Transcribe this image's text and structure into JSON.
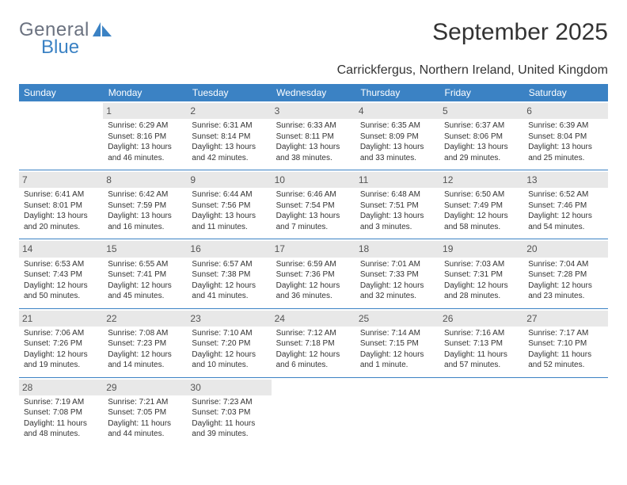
{
  "logo": {
    "text_general": "General",
    "text_blue": "Blue"
  },
  "title": {
    "month_year": "September 2025"
  },
  "location": "Carrickfergus, Northern Ireland, United Kingdom",
  "colors": {
    "header_bg": "#3b82c4",
    "header_text": "#ffffff",
    "daynum_bg": "#e8e8e8",
    "text": "#333333"
  },
  "weekdays": [
    "Sunday",
    "Monday",
    "Tuesday",
    "Wednesday",
    "Thursday",
    "Friday",
    "Saturday"
  ],
  "weeks": [
    [
      null,
      {
        "n": "1",
        "sr": "Sunrise: 6:29 AM",
        "ss": "Sunset: 8:16 PM",
        "dl": "Daylight: 13 hours and 46 minutes."
      },
      {
        "n": "2",
        "sr": "Sunrise: 6:31 AM",
        "ss": "Sunset: 8:14 PM",
        "dl": "Daylight: 13 hours and 42 minutes."
      },
      {
        "n": "3",
        "sr": "Sunrise: 6:33 AM",
        "ss": "Sunset: 8:11 PM",
        "dl": "Daylight: 13 hours and 38 minutes."
      },
      {
        "n": "4",
        "sr": "Sunrise: 6:35 AM",
        "ss": "Sunset: 8:09 PM",
        "dl": "Daylight: 13 hours and 33 minutes."
      },
      {
        "n": "5",
        "sr": "Sunrise: 6:37 AM",
        "ss": "Sunset: 8:06 PM",
        "dl": "Daylight: 13 hours and 29 minutes."
      },
      {
        "n": "6",
        "sr": "Sunrise: 6:39 AM",
        "ss": "Sunset: 8:04 PM",
        "dl": "Daylight: 13 hours and 25 minutes."
      }
    ],
    [
      {
        "n": "7",
        "sr": "Sunrise: 6:41 AM",
        "ss": "Sunset: 8:01 PM",
        "dl": "Daylight: 13 hours and 20 minutes."
      },
      {
        "n": "8",
        "sr": "Sunrise: 6:42 AM",
        "ss": "Sunset: 7:59 PM",
        "dl": "Daylight: 13 hours and 16 minutes."
      },
      {
        "n": "9",
        "sr": "Sunrise: 6:44 AM",
        "ss": "Sunset: 7:56 PM",
        "dl": "Daylight: 13 hours and 11 minutes."
      },
      {
        "n": "10",
        "sr": "Sunrise: 6:46 AM",
        "ss": "Sunset: 7:54 PM",
        "dl": "Daylight: 13 hours and 7 minutes."
      },
      {
        "n": "11",
        "sr": "Sunrise: 6:48 AM",
        "ss": "Sunset: 7:51 PM",
        "dl": "Daylight: 13 hours and 3 minutes."
      },
      {
        "n": "12",
        "sr": "Sunrise: 6:50 AM",
        "ss": "Sunset: 7:49 PM",
        "dl": "Daylight: 12 hours and 58 minutes."
      },
      {
        "n": "13",
        "sr": "Sunrise: 6:52 AM",
        "ss": "Sunset: 7:46 PM",
        "dl": "Daylight: 12 hours and 54 minutes."
      }
    ],
    [
      {
        "n": "14",
        "sr": "Sunrise: 6:53 AM",
        "ss": "Sunset: 7:43 PM",
        "dl": "Daylight: 12 hours and 50 minutes."
      },
      {
        "n": "15",
        "sr": "Sunrise: 6:55 AM",
        "ss": "Sunset: 7:41 PM",
        "dl": "Daylight: 12 hours and 45 minutes."
      },
      {
        "n": "16",
        "sr": "Sunrise: 6:57 AM",
        "ss": "Sunset: 7:38 PM",
        "dl": "Daylight: 12 hours and 41 minutes."
      },
      {
        "n": "17",
        "sr": "Sunrise: 6:59 AM",
        "ss": "Sunset: 7:36 PM",
        "dl": "Daylight: 12 hours and 36 minutes."
      },
      {
        "n": "18",
        "sr": "Sunrise: 7:01 AM",
        "ss": "Sunset: 7:33 PM",
        "dl": "Daylight: 12 hours and 32 minutes."
      },
      {
        "n": "19",
        "sr": "Sunrise: 7:03 AM",
        "ss": "Sunset: 7:31 PM",
        "dl": "Daylight: 12 hours and 28 minutes."
      },
      {
        "n": "20",
        "sr": "Sunrise: 7:04 AM",
        "ss": "Sunset: 7:28 PM",
        "dl": "Daylight: 12 hours and 23 minutes."
      }
    ],
    [
      {
        "n": "21",
        "sr": "Sunrise: 7:06 AM",
        "ss": "Sunset: 7:26 PM",
        "dl": "Daylight: 12 hours and 19 minutes."
      },
      {
        "n": "22",
        "sr": "Sunrise: 7:08 AM",
        "ss": "Sunset: 7:23 PM",
        "dl": "Daylight: 12 hours and 14 minutes."
      },
      {
        "n": "23",
        "sr": "Sunrise: 7:10 AM",
        "ss": "Sunset: 7:20 PM",
        "dl": "Daylight: 12 hours and 10 minutes."
      },
      {
        "n": "24",
        "sr": "Sunrise: 7:12 AM",
        "ss": "Sunset: 7:18 PM",
        "dl": "Daylight: 12 hours and 6 minutes."
      },
      {
        "n": "25",
        "sr": "Sunrise: 7:14 AM",
        "ss": "Sunset: 7:15 PM",
        "dl": "Daylight: 12 hours and 1 minute."
      },
      {
        "n": "26",
        "sr": "Sunrise: 7:16 AM",
        "ss": "Sunset: 7:13 PM",
        "dl": "Daylight: 11 hours and 57 minutes."
      },
      {
        "n": "27",
        "sr": "Sunrise: 7:17 AM",
        "ss": "Sunset: 7:10 PM",
        "dl": "Daylight: 11 hours and 52 minutes."
      }
    ],
    [
      {
        "n": "28",
        "sr": "Sunrise: 7:19 AM",
        "ss": "Sunset: 7:08 PM",
        "dl": "Daylight: 11 hours and 48 minutes."
      },
      {
        "n": "29",
        "sr": "Sunrise: 7:21 AM",
        "ss": "Sunset: 7:05 PM",
        "dl": "Daylight: 11 hours and 44 minutes."
      },
      {
        "n": "30",
        "sr": "Sunrise: 7:23 AM",
        "ss": "Sunset: 7:03 PM",
        "dl": "Daylight: 11 hours and 39 minutes."
      },
      null,
      null,
      null,
      null
    ]
  ]
}
